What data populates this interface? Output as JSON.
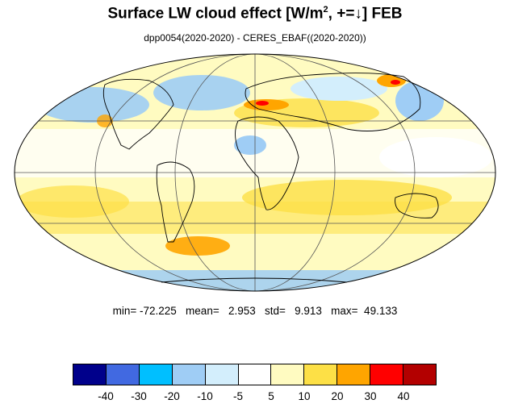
{
  "title": {
    "prefix": "Surface LW cloud effect [W/m",
    "superscript": "2",
    "suffix": ", +=↓]  FEB"
  },
  "subtitle": "dpp0054(2020-2020) - CERES_EBAF((2020-2020))",
  "stats": {
    "text": "min= -72.225   mean=   2.953   std=   9.913   max=  49.133"
  },
  "map": {
    "projection": "mollweide",
    "land_outline_color": "#000000",
    "regions": [
      {
        "name": "north-america-west-cool",
        "lon": -115,
        "lat": 50,
        "level": "blue-2"
      },
      {
        "name": "north-atlantic-cool",
        "lon": -40,
        "lat": 48,
        "level": "blue-2"
      },
      {
        "name": "mediterranean-warm",
        "lon": 18,
        "lat": 40,
        "level": "orange"
      },
      {
        "name": "east-siberia-warm",
        "lon": 140,
        "lat": 62,
        "level": "red"
      },
      {
        "name": "south-atlantic-warm",
        "lon": -40,
        "lat": -40,
        "level": "orange"
      },
      {
        "name": "indian-ocean-warm",
        "lon": 80,
        "lat": -20,
        "level": "yellow"
      },
      {
        "name": "antarctic-cool",
        "lon": 0,
        "lat": -75,
        "level": "blue-2"
      }
    ]
  },
  "colorbar": {
    "colors": [
      "#00008b",
      "#4169e1",
      "#00bfff",
      "#9fcdf5",
      "#d3eefc",
      "#ffffff",
      "#fffbc1",
      "#fde046",
      "#ffa500",
      "#ff0000",
      "#b30000"
    ],
    "ticks": [
      "-40",
      "-30",
      "-20",
      "-10",
      "-5",
      "5",
      "10",
      "20",
      "30",
      "40"
    ]
  }
}
